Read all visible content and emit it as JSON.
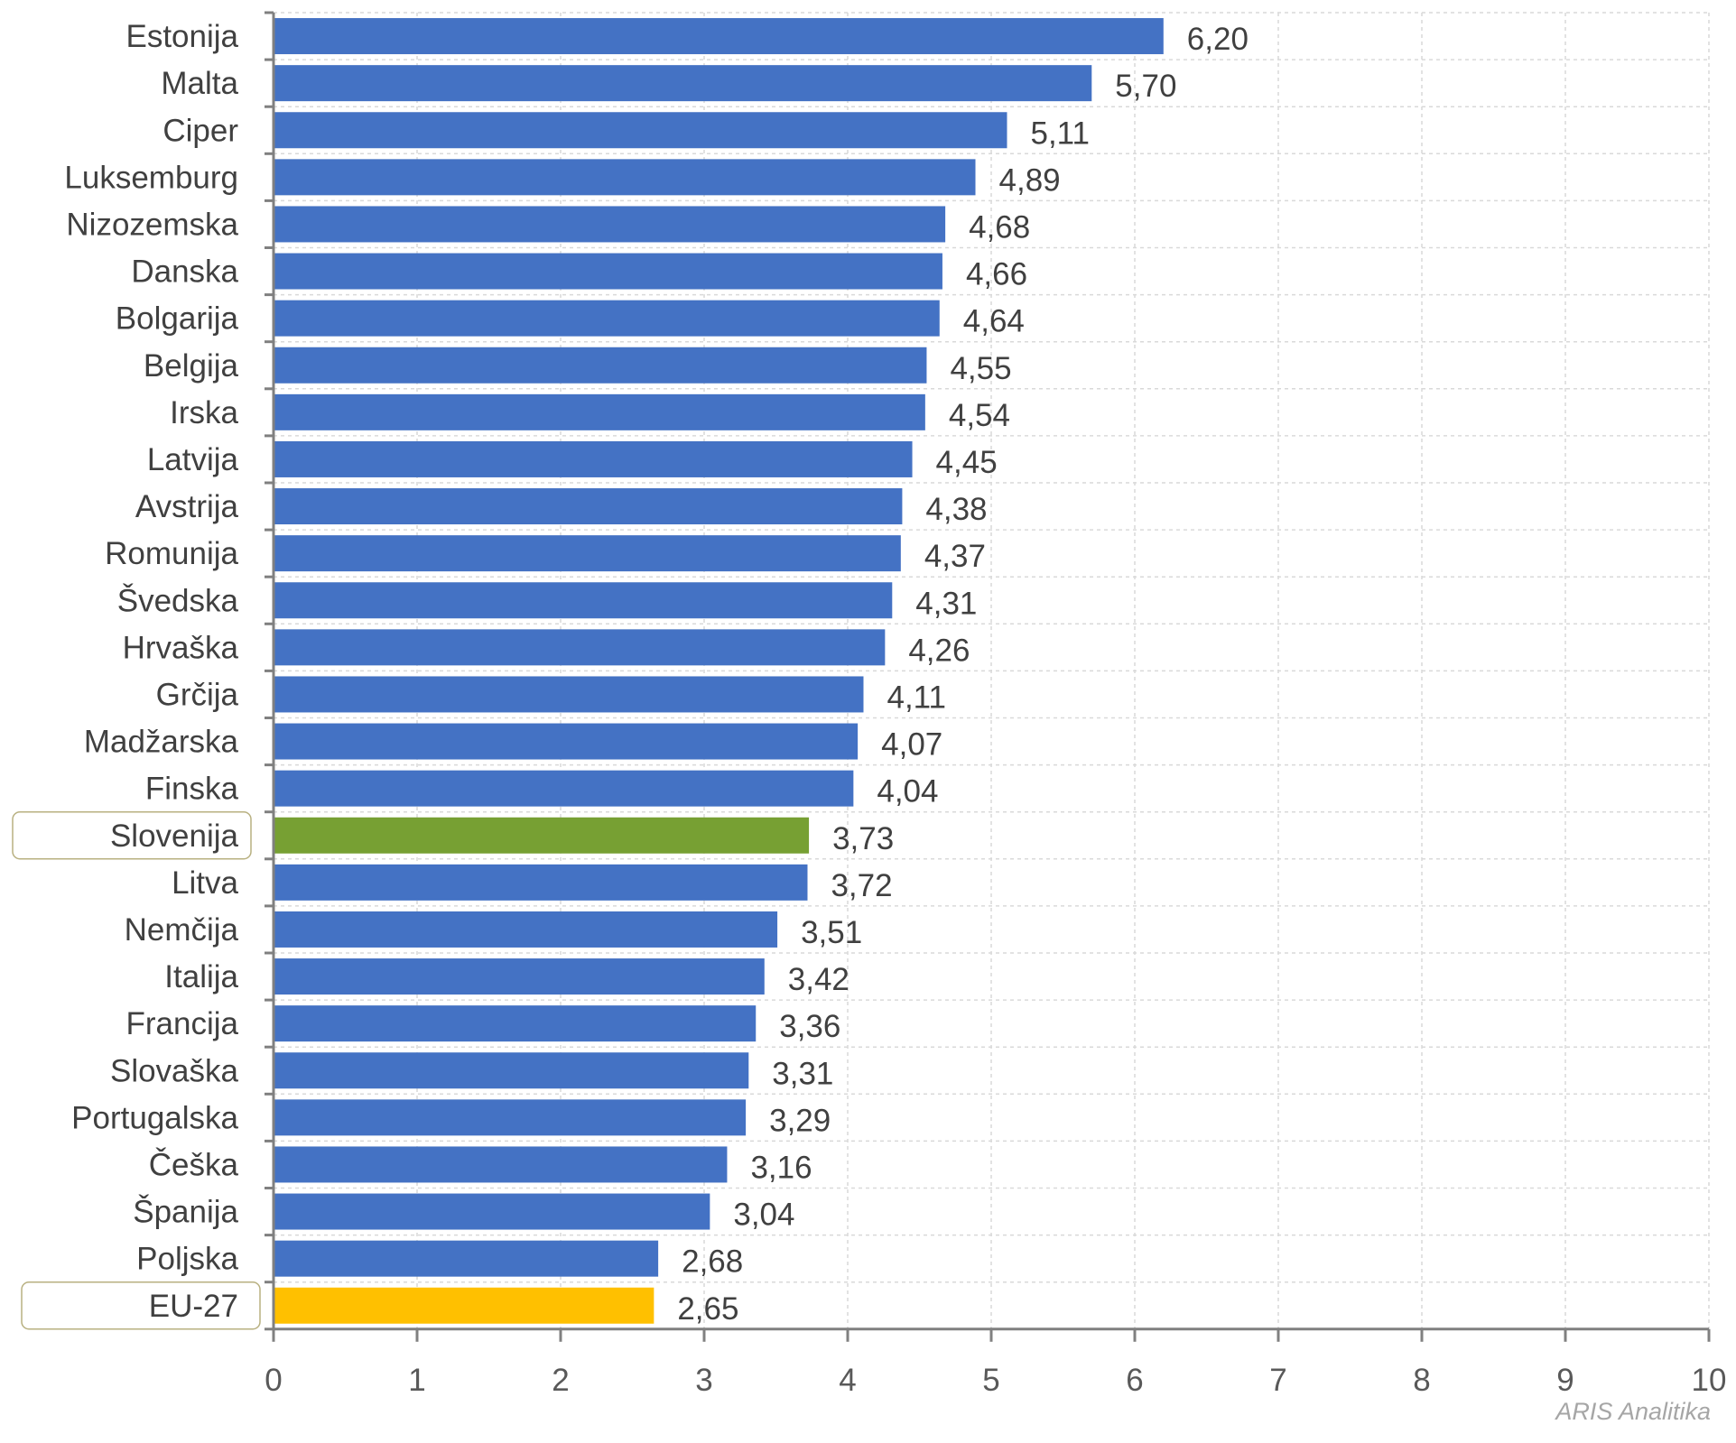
{
  "chart_data": {
    "type": "bar",
    "orientation": "horizontal",
    "categories": [
      "Estonija",
      "Malta",
      "Ciper",
      "Luksemburg",
      "Nizozemska",
      "Danska",
      "Bolgarija",
      "Belgija",
      "Irska",
      "Latvija",
      "Avstrija",
      "Romunija",
      "Švedska",
      "Hrvaška",
      "Grčija",
      "Madžarska",
      "Finska",
      "Slovenija",
      "Litva",
      "Nemčija",
      "Italija",
      "Francija",
      "Slovaška",
      "Portugalska",
      "Češka",
      "Španija",
      "Poljska",
      "EU-27"
    ],
    "values": [
      6.2,
      5.7,
      5.11,
      4.89,
      4.68,
      4.66,
      4.64,
      4.55,
      4.54,
      4.45,
      4.38,
      4.37,
      4.31,
      4.26,
      4.11,
      4.07,
      4.04,
      3.73,
      3.72,
      3.51,
      3.42,
      3.36,
      3.31,
      3.29,
      3.16,
      3.04,
      2.68,
      2.65
    ],
    "value_labels": [
      "6,20",
      "5,70",
      "5,11",
      "4,89",
      "4,68",
      "4,66",
      "4,64",
      "4,55",
      "4,54",
      "4,45",
      "4,38",
      "4,37",
      "4,31",
      "4,26",
      "4,11",
      "4,07",
      "4,04",
      "3,73",
      "3,72",
      "3,51",
      "3,42",
      "3,36",
      "3,31",
      "3,29",
      "3,16",
      "3,04",
      "2,68",
      "2,65"
    ],
    "xlim": [
      0,
      10
    ],
    "xticks": [
      "0",
      "1",
      "2",
      "3",
      "4",
      "5",
      "6",
      "7",
      "8",
      "9",
      "10"
    ],
    "grid": true,
    "legend": "none",
    "colors": {
      "default": "#4472c4",
      "highlight": {
        "Slovenija": "#77a033",
        "EU-27": "#ffc000"
      }
    },
    "highlighted_categories": [
      "Slovenija",
      "EU-27"
    ]
  },
  "watermark": "ARIS Analitika"
}
